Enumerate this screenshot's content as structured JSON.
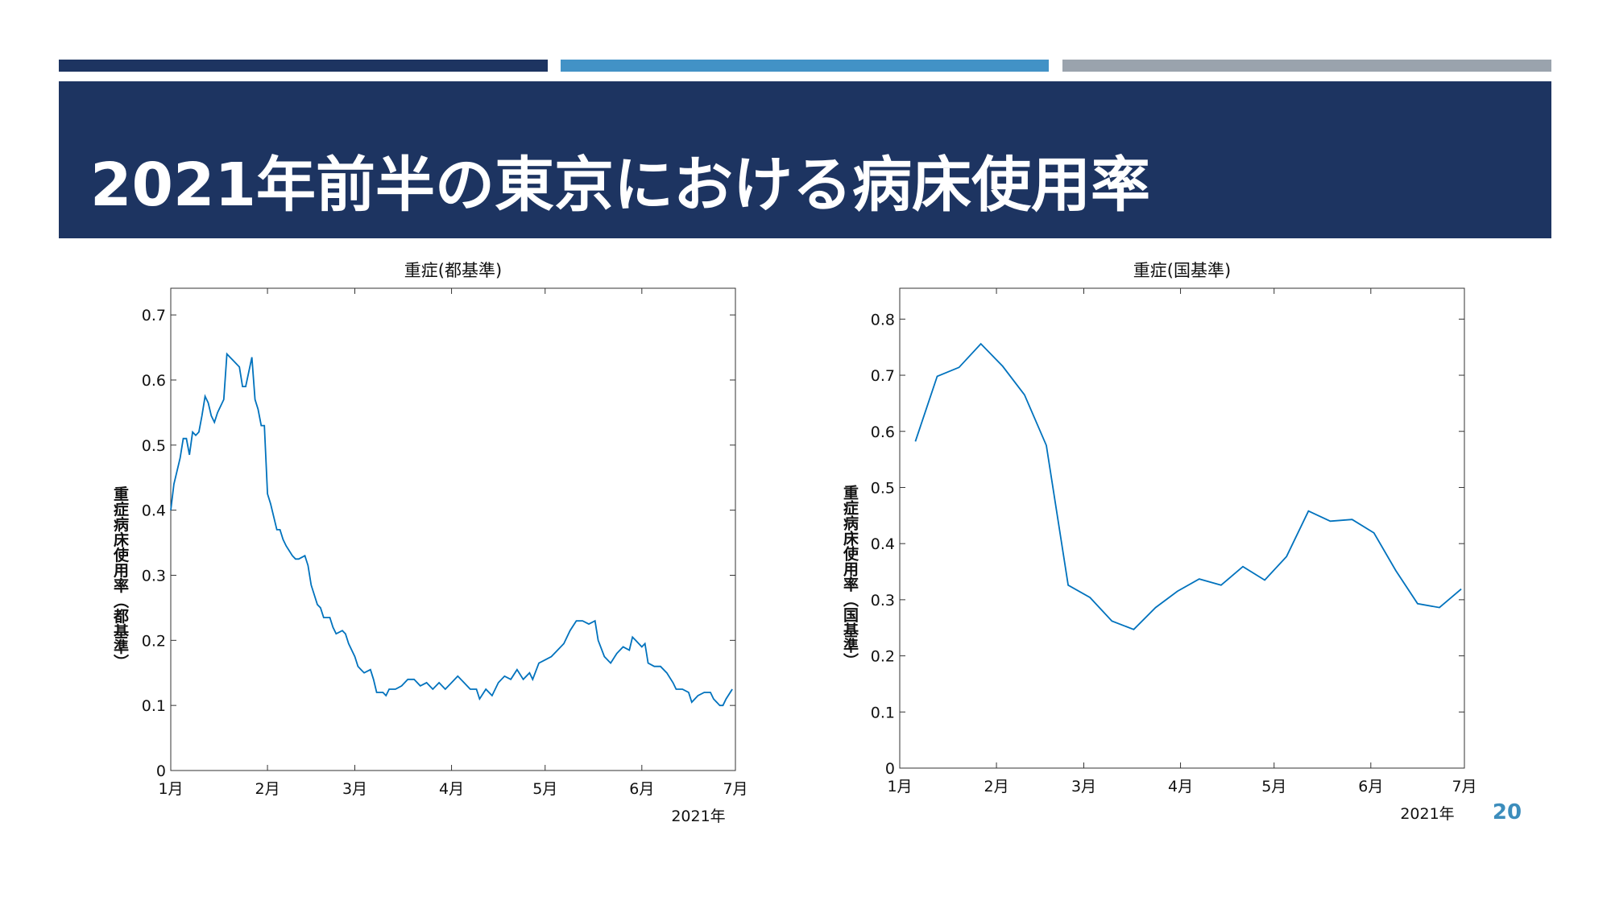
{
  "slide": {
    "title": "2021年前半の東京における病床使用率",
    "page": "20"
  },
  "chart_data": [
    {
      "type": "line",
      "title": "重症(都基準)",
      "ylabel": "重症病床使用率（都基準）",
      "xlabel": "2021年",
      "color": "#0072bd",
      "xlim": [
        0,
        181
      ],
      "ylim": [
        0,
        0.741
      ],
      "xticks": [
        {
          "value": 0,
          "label": "1月"
        },
        {
          "value": 31,
          "label": "2月"
        },
        {
          "value": 59,
          "label": "3月"
        },
        {
          "value": 90,
          "label": "4月"
        },
        {
          "value": 120,
          "label": "5月"
        },
        {
          "value": 151,
          "label": "6月"
        },
        {
          "value": 181,
          "label": "7月"
        }
      ],
      "yticks": [
        0,
        0.1,
        0.2,
        0.3,
        0.4,
        0.5,
        0.6,
        0.7
      ],
      "x": [
        0,
        1,
        3,
        4,
        5,
        6,
        7,
        8,
        9,
        10,
        11,
        12,
        13,
        14,
        15,
        17,
        18,
        19,
        20,
        22,
        23,
        24,
        26,
        27,
        28,
        29,
        30,
        31,
        32,
        34,
        35,
        36,
        37,
        39,
        40,
        41,
        43,
        44,
        45,
        47,
        48,
        49,
        51,
        52,
        53,
        55,
        56,
        57,
        59,
        60,
        61,
        62,
        64,
        65,
        66,
        68,
        69,
        70,
        72,
        74,
        76,
        78,
        80,
        82,
        84,
        86,
        88,
        90,
        92,
        94,
        96,
        98,
        99,
        101,
        103,
        105,
        107,
        109,
        111,
        113,
        115,
        116,
        118,
        120,
        122,
        124,
        126,
        128,
        130,
        132,
        134,
        136,
        137,
        139,
        141,
        143,
        145,
        147,
        148,
        149,
        151,
        152,
        153,
        155,
        157,
        159,
        161,
        162,
        164,
        166,
        167,
        169,
        171,
        173,
        174,
        176,
        177,
        178,
        180
      ],
      "values": [
        0.4,
        0.44,
        0.48,
        0.51,
        0.51,
        0.485,
        0.52,
        0.515,
        0.52,
        0.545,
        0.575,
        0.565,
        0.545,
        0.535,
        0.55,
        0.57,
        0.64,
        0.635,
        0.63,
        0.62,
        0.59,
        0.59,
        0.635,
        0.57,
        0.555,
        0.53,
        0.53,
        0.425,
        0.41,
        0.37,
        0.37,
        0.355,
        0.345,
        0.33,
        0.325,
        0.325,
        0.33,
        0.315,
        0.285,
        0.255,
        0.25,
        0.235,
        0.235,
        0.22,
        0.21,
        0.215,
        0.21,
        0.195,
        0.175,
        0.16,
        0.155,
        0.15,
        0.155,
        0.14,
        0.12,
        0.12,
        0.115,
        0.125,
        0.125,
        0.13,
        0.14,
        0.14,
        0.13,
        0.135,
        0.125,
        0.135,
        0.125,
        0.135,
        0.145,
        0.135,
        0.125,
        0.125,
        0.11,
        0.125,
        0.115,
        0.135,
        0.145,
        0.14,
        0.155,
        0.14,
        0.15,
        0.14,
        0.165,
        0.17,
        0.175,
        0.185,
        0.195,
        0.215,
        0.23,
        0.23,
        0.225,
        0.23,
        0.2,
        0.175,
        0.165,
        0.18,
        0.19,
        0.185,
        0.205,
        0.2,
        0.19,
        0.195,
        0.165,
        0.16,
        0.16,
        0.15,
        0.135,
        0.125,
        0.125,
        0.12,
        0.105,
        0.115,
        0.12,
        0.12,
        0.11,
        0.1,
        0.1,
        0.11,
        0.125
      ]
    },
    {
      "type": "line",
      "title": "重症(国基準)",
      "ylabel": "重症病床使用率（国基準）",
      "xlabel": "2021年",
      "color": "#0072bd",
      "xlim": [
        0,
        181
      ],
      "ylim": [
        0,
        0.855
      ],
      "xticks": [
        {
          "value": 0,
          "label": "1月"
        },
        {
          "value": 31,
          "label": "2月"
        },
        {
          "value": 59,
          "label": "3月"
        },
        {
          "value": 90,
          "label": "4月"
        },
        {
          "value": 120,
          "label": "5月"
        },
        {
          "value": 151,
          "label": "6月"
        },
        {
          "value": 181,
          "label": "7月"
        }
      ],
      "yticks": [
        0,
        0.1,
        0.2,
        0.3,
        0.4,
        0.5,
        0.6,
        0.7,
        0.8
      ],
      "x": [
        5,
        12,
        19,
        26,
        33,
        40,
        47,
        54,
        61,
        68,
        75,
        82,
        89,
        96,
        103,
        110,
        117,
        124,
        131,
        138,
        145,
        152,
        159,
        166,
        173,
        180
      ],
      "values": [
        0.582,
        0.698,
        0.714,
        0.756,
        0.716,
        0.665,
        0.575,
        0.326,
        0.304,
        0.262,
        0.247,
        0.286,
        0.315,
        0.337,
        0.326,
        0.359,
        0.335,
        0.377,
        0.458,
        0.44,
        0.443,
        0.419,
        0.352,
        0.293,
        0.286,
        0.319
      ]
    }
  ]
}
